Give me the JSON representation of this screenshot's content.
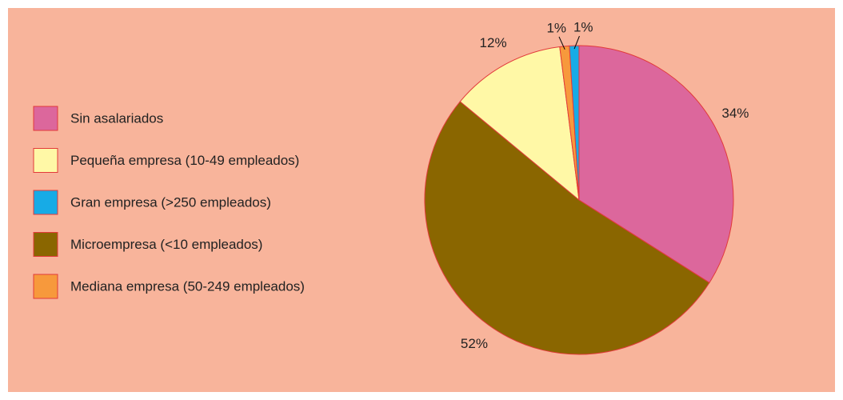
{
  "chart_data": {
    "type": "pie",
    "categories": [
      "Sin asalariados",
      "Microempresa (<10 empleados)",
      "Pequeña empresa (10-49 empleados)",
      "Mediana empresa (50-249 empleados)",
      "Gran empresa (>250 empleados)"
    ],
    "values": [
      34,
      52,
      12,
      1,
      1
    ],
    "value_labels": [
      "34%",
      "52%",
      "12%",
      "1%",
      "1%"
    ],
    "colors": [
      "#dc679c",
      "#8a6600",
      "#fff8a6",
      "#f7993c",
      "#17abe6"
    ],
    "legend": "left"
  }
}
